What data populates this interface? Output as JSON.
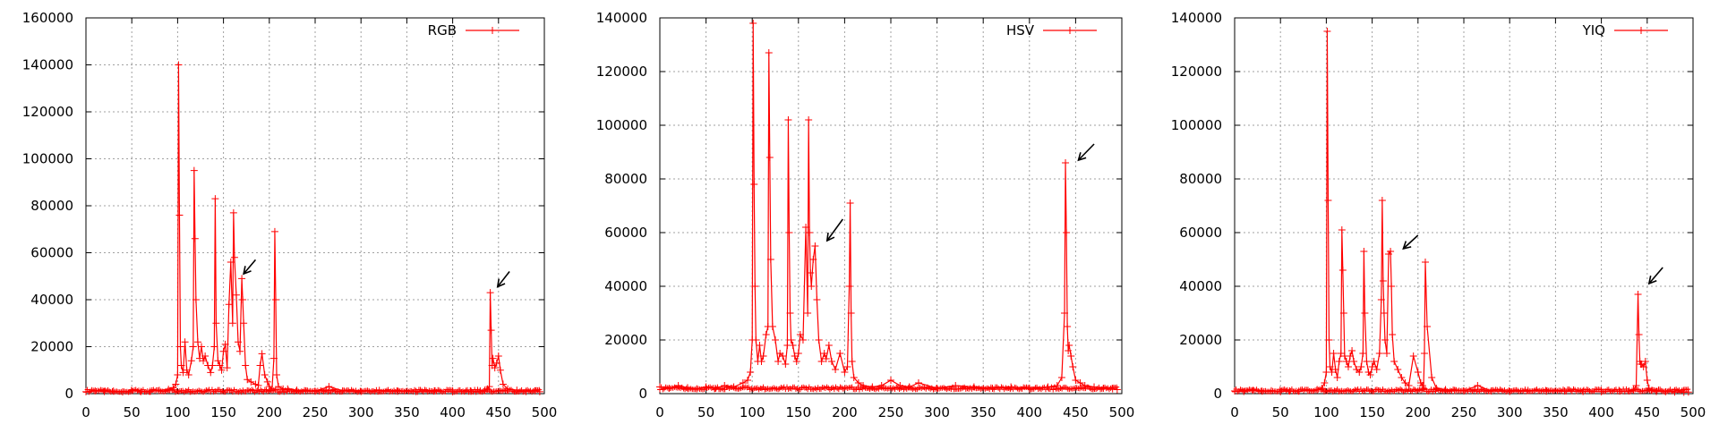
{
  "chart_data": [
    {
      "type": "line",
      "xlim": [
        0,
        500
      ],
      "ylim": [
        0,
        160000
      ],
      "x_ticks": [
        0,
        50,
        100,
        150,
        200,
        250,
        300,
        350,
        400,
        450,
        500
      ],
      "y_ticks": [
        0,
        20000,
        40000,
        60000,
        80000,
        100000,
        120000,
        140000,
        160000
      ],
      "x_tick_labels": [
        "0",
        "50",
        "100",
        "150",
        "200",
        "250",
        "300",
        "350",
        "400",
        "450",
        "500"
      ],
      "y_tick_labels": [
        "0",
        "20000",
        "40000",
        "60000",
        "80000",
        "100000",
        "120000",
        "140000",
        "160000"
      ],
      "grid": true,
      "legend_position": "top-right",
      "series": [
        {
          "name": "RGB",
          "color": "#ff0000",
          "marker": "plus",
          "baseline": 600,
          "x": [
            0,
            10,
            20,
            30,
            40,
            50,
            60,
            70,
            80,
            90,
            95,
            98,
            100,
            101,
            102,
            103,
            104,
            106,
            108,
            110,
            112,
            115,
            117,
            118,
            119,
            120,
            122,
            124,
            126,
            128,
            130,
            133,
            136,
            138,
            140,
            141,
            142,
            144,
            146,
            148,
            150,
            152,
            154,
            156,
            158,
            160,
            161,
            162,
            164,
            166,
            168,
            170,
            171,
            172,
            174,
            176,
            180,
            185,
            188,
            190,
            192,
            195,
            198,
            200,
            203,
            205,
            206,
            207,
            208,
            210,
            215,
            220,
            230,
            240,
            250,
            265,
            280,
            300,
            320,
            340,
            360,
            380,
            400,
            420,
            430,
            435,
            438,
            440,
            441,
            442,
            443,
            444,
            446,
            448,
            450,
            452,
            455,
            460,
            470,
            480,
            490,
            495
          ],
          "y": [
            800,
            1200,
            900,
            1100,
            700,
            1300,
            900,
            1000,
            1400,
            1800,
            2500,
            4000,
            8000,
            140000,
            76000,
            20000,
            12000,
            9000,
            22000,
            10000,
            8000,
            14000,
            20000,
            95000,
            66000,
            40000,
            22000,
            15000,
            20000,
            14000,
            16000,
            12000,
            9000,
            12000,
            20000,
            83000,
            30000,
            14000,
            12000,
            10000,
            18000,
            21000,
            11000,
            38000,
            56000,
            30000,
            77000,
            58000,
            42000,
            22000,
            18000,
            49000,
            40000,
            30000,
            12000,
            6000,
            5000,
            4000,
            3500,
            12000,
            17000,
            8000,
            5000,
            3000,
            2000,
            15000,
            69000,
            40000,
            8000,
            3000,
            2000,
            2000,
            1500,
            1200,
            1000,
            3000,
            1200,
            900,
            1400,
            1000,
            900,
            1200,
            800,
            1000,
            1200,
            1500,
            2000,
            3000,
            43000,
            27000,
            12000,
            15000,
            11000,
            13000,
            16000,
            10000,
            4000,
            2000,
            1500,
            900,
            1200,
            800
          ]
        }
      ]
    },
    {
      "type": "line",
      "xlim": [
        0,
        500
      ],
      "ylim": [
        0,
        140000
      ],
      "x_ticks": [
        0,
        50,
        100,
        150,
        200,
        250,
        300,
        350,
        400,
        450,
        500
      ],
      "y_ticks": [
        0,
        20000,
        40000,
        60000,
        80000,
        100000,
        120000,
        140000
      ],
      "x_tick_labels": [
        "0",
        "50",
        "100",
        "150",
        "200",
        "250",
        "300",
        "350",
        "400",
        "450",
        "500"
      ],
      "y_tick_labels": [
        "0",
        "20000",
        "40000",
        "60000",
        "80000",
        "100000",
        "120000",
        "140000"
      ],
      "grid": true,
      "legend_position": "top-right",
      "series": [
        {
          "name": "HSV",
          "color": "#ff0000",
          "marker": "plus",
          "baseline": 1500,
          "x": [
            0,
            10,
            20,
            30,
            40,
            50,
            60,
            70,
            80,
            90,
            95,
            98,
            100,
            101,
            102,
            103,
            104,
            106,
            108,
            110,
            112,
            115,
            117,
            118,
            119,
            120,
            122,
            125,
            128,
            130,
            133,
            136,
            138,
            139,
            140,
            141,
            142,
            144,
            146,
            148,
            150,
            152,
            155,
            158,
            160,
            161,
            162,
            163,
            164,
            166,
            168,
            170,
            172,
            175,
            178,
            180,
            183,
            186,
            190,
            195,
            200,
            203,
            205,
            206,
            207,
            208,
            210,
            215,
            220,
            230,
            240,
            250,
            260,
            270,
            280,
            300,
            320,
            340,
            360,
            380,
            400,
            420,
            430,
            435,
            438,
            439,
            440,
            441,
            442,
            443,
            445,
            447,
            450,
            455,
            460,
            470,
            480,
            490,
            495
          ],
          "y": [
            2500,
            2000,
            3000,
            2200,
            1800,
            2500,
            2000,
            3000,
            2500,
            4000,
            5000,
            8000,
            20000,
            138000,
            78000,
            40000,
            20000,
            12000,
            18000,
            12000,
            14000,
            22000,
            25000,
            127000,
            88000,
            50000,
            25000,
            20000,
            12000,
            15000,
            14000,
            11000,
            18000,
            102000,
            60000,
            30000,
            20000,
            18000,
            14000,
            12000,
            15000,
            22000,
            20000,
            62000,
            30000,
            102000,
            60000,
            45000,
            40000,
            50000,
            55000,
            35000,
            20000,
            12000,
            15000,
            13000,
            18000,
            12000,
            9000,
            15000,
            8000,
            10000,
            40000,
            71000,
            30000,
            12000,
            6000,
            4000,
            3000,
            2500,
            3000,
            5000,
            3000,
            2500,
            4000,
            2000,
            3000,
            2500,
            2000,
            2500,
            1800,
            2500,
            3000,
            6000,
            30000,
            86000,
            60000,
            25000,
            16000,
            18000,
            14000,
            10000,
            5000,
            4000,
            3000,
            2500,
            2000,
            1800,
            1500
          ]
        }
      ]
    },
    {
      "type": "line",
      "xlim": [
        0,
        500
      ],
      "ylim": [
        0,
        140000
      ],
      "x_ticks": [
        0,
        50,
        100,
        150,
        200,
        250,
        300,
        350,
        400,
        450,
        500
      ],
      "y_ticks": [
        0,
        20000,
        40000,
        60000,
        80000,
        100000,
        120000,
        140000
      ],
      "x_tick_labels": [
        "0",
        "50",
        "100",
        "150",
        "200",
        "250",
        "300",
        "350",
        "400",
        "450",
        "500"
      ],
      "y_tick_labels": [
        "0",
        "20000",
        "40000",
        "60000",
        "80000",
        "100000",
        "120000",
        "140000"
      ],
      "grid": true,
      "legend_position": "top-right",
      "series": [
        {
          "name": "YIQ",
          "color": "#ff0000",
          "marker": "plus",
          "baseline": 700,
          "x": [
            0,
            10,
            20,
            30,
            40,
            50,
            60,
            70,
            80,
            90,
            95,
            98,
            100,
            101,
            102,
            103,
            104,
            106,
            108,
            110,
            112,
            114,
            116,
            117,
            118,
            119,
            120,
            122,
            124,
            126,
            128,
            130,
            133,
            136,
            138,
            140,
            141,
            142,
            144,
            146,
            148,
            150,
            152,
            155,
            158,
            160,
            161,
            162,
            163,
            164,
            166,
            168,
            170,
            171,
            172,
            174,
            178,
            182,
            186,
            190,
            195,
            200,
            203,
            205,
            206,
            207,
            208,
            210,
            215,
            220,
            230,
            240,
            250,
            265,
            280,
            300,
            320,
            340,
            360,
            380,
            400,
            420,
            430,
            435,
            438,
            440,
            441,
            442,
            443,
            444,
            446,
            448,
            450,
            452,
            455,
            460,
            470,
            480,
            490,
            495
          ],
          "y": [
            1000,
            800,
            1200,
            900,
            1100,
            700,
            1000,
            900,
            1200,
            1500,
            2000,
            4000,
            8000,
            135000,
            72000,
            20000,
            10000,
            8000,
            15000,
            9000,
            6000,
            12000,
            15000,
            61000,
            46000,
            30000,
            14000,
            12000,
            10000,
            14000,
            16000,
            12000,
            9000,
            8000,
            10000,
            15000,
            53000,
            30000,
            12000,
            8000,
            7000,
            10000,
            12000,
            9000,
            15000,
            35000,
            72000,
            42000,
            30000,
            20000,
            15000,
            52000,
            53000,
            40000,
            22000,
            12000,
            9000,
            6000,
            4000,
            3000,
            14000,
            8000,
            4000,
            3000,
            2000,
            15000,
            49000,
            25000,
            6000,
            2000,
            1500,
            1200,
            1000,
            3000,
            1000,
            800,
            1200,
            900,
            1000,
            800,
            700,
            900,
            1000,
            1500,
            3000,
            37000,
            22000,
            12000,
            11000,
            11000,
            10000,
            12000,
            5000,
            2000,
            1200,
            800,
            700,
            600,
            500,
            600
          ]
        }
      ]
    }
  ]
}
